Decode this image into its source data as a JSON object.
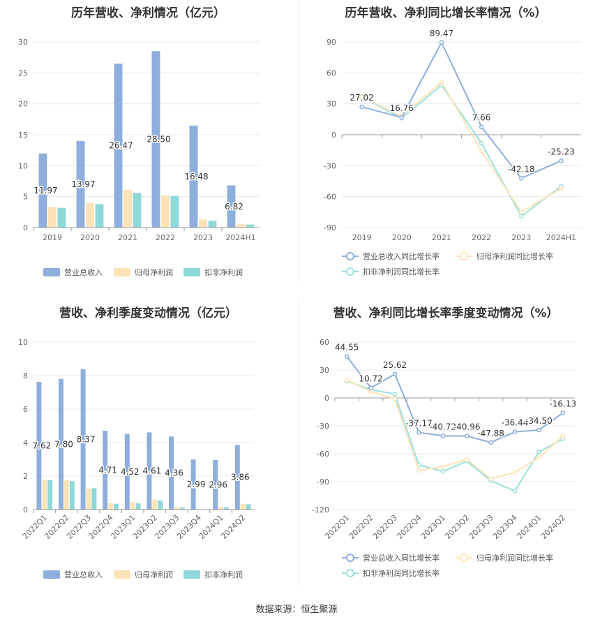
{
  "source_label": "数据来源：恒生聚源",
  "colors": {
    "revenue": "#8eaedb",
    "parent_profit": "#fde3b7",
    "deducted_profit": "#8fd8d8",
    "revenue_line": "#8eaedb",
    "parent_line": "#fde3b7",
    "deducted_line": "#9ae0dc"
  },
  "chart_data": [
    {
      "id": "annual-bars",
      "type": "bar",
      "title": "历年营收、净利情况（亿元）",
      "categories": [
        "2019",
        "2020",
        "2021",
        "2022",
        "2023",
        "2024H1"
      ],
      "ylim": [
        0,
        30
      ],
      "yticks": [
        0,
        5,
        10,
        15,
        20,
        25,
        30
      ],
      "legend_position": "bottom",
      "series": [
        {
          "name": "营业总收入",
          "values": [
            11.97,
            13.97,
            26.47,
            28.5,
            16.48,
            6.82
          ],
          "labels": [
            "11.97",
            "13.97",
            "26.47",
            "28.50",
            "16.48",
            "6.82"
          ]
        },
        {
          "name": "归母净利润",
          "values": [
            3.3,
            4.0,
            6.1,
            5.2,
            1.3,
            0.55
          ],
          "labels": []
        },
        {
          "name": "扣非净利润",
          "values": [
            3.2,
            3.8,
            5.6,
            5.1,
            1.1,
            0.5
          ],
          "labels": []
        }
      ]
    },
    {
      "id": "annual-lines",
      "type": "line",
      "title": "历年营收、净利同比增长率情况（%）",
      "categories": [
        "2019",
        "2020",
        "2021",
        "2022",
        "2023",
        "2024H1"
      ],
      "ylim": [
        -90,
        90
      ],
      "yticks": [
        -90,
        -60,
        -30,
        0,
        30,
        60,
        90
      ],
      "legend_position": "bottom",
      "series": [
        {
          "name": "营业总收入同比增长率",
          "values": [
            27.02,
            16.76,
            89.47,
            7.66,
            -42.18,
            -25.23
          ],
          "labels": [
            "27.02",
            "16.76",
            "89.47",
            "7.66",
            "-42.18",
            "-25.23"
          ]
        },
        {
          "name": "归母净利润同比增长率",
          "values": [
            37,
            18,
            51,
            -16,
            -75,
            -52
          ],
          "labels": []
        },
        {
          "name": "扣非净利润同比增长率",
          "values": [
            37,
            16,
            48,
            -8,
            -79,
            -50
          ],
          "labels": []
        }
      ]
    },
    {
      "id": "quarterly-bars",
      "type": "bar",
      "title": "营收、净利季度变动情况（亿元）",
      "categories": [
        "2022Q1",
        "2022Q2",
        "2022Q3",
        "2022Q4",
        "2023Q1",
        "2023Q2",
        "2023Q3",
        "2023Q4",
        "2024Q1",
        "2024Q2"
      ],
      "ylim": [
        0,
        10
      ],
      "yticks": [
        0,
        2,
        4,
        6,
        8,
        10
      ],
      "legend_position": "bottom",
      "series": [
        {
          "name": "营业总收入",
          "values": [
            7.62,
            7.8,
            8.37,
            4.71,
            4.52,
            4.61,
            4.36,
            2.99,
            2.96,
            3.86
          ],
          "labels": [
            "7.62",
            "7.80",
            "8.37",
            "4.71",
            "4.52",
            "4.61",
            "4.36",
            "2.99",
            "2.96",
            "3.86"
          ]
        },
        {
          "name": "归母净利润",
          "values": [
            1.8,
            1.75,
            1.25,
            0.38,
            0.45,
            0.6,
            0.15,
            0.02,
            0.15,
            0.35
          ],
          "labels": []
        },
        {
          "name": "扣非净利润",
          "values": [
            1.75,
            1.7,
            1.28,
            0.35,
            0.38,
            0.55,
            0.12,
            0.01,
            0.14,
            0.32
          ],
          "labels": []
        }
      ]
    },
    {
      "id": "quarterly-lines",
      "type": "line",
      "title": "营收、净利同比增长率季度变动情况（%）",
      "categories": [
        "2022Q1",
        "2022Q2",
        "2022Q3",
        "2022Q4",
        "2023Q1",
        "2023Q2",
        "2023Q3",
        "2023Q4",
        "2024Q1",
        "2024Q2"
      ],
      "ylim": [
        -120,
        60
      ],
      "yticks": [
        -120,
        -90,
        -60,
        -30,
        0,
        30,
        60
      ],
      "legend_position": "bottom",
      "series": [
        {
          "name": "营业总收入同比增长率",
          "values": [
            44.55,
            10.72,
            25.62,
            -37.17,
            -40.72,
            -40.96,
            -47.88,
            -36.44,
            -34.5,
            -16.13
          ],
          "labels": [
            "44.55",
            "10.72",
            "25.62",
            "-37.17",
            "-40.72",
            "-40.96",
            "-47.88",
            "-36.44",
            "-34.50",
            "-16.13"
          ]
        },
        {
          "name": "归母净利润同比增长率",
          "values": [
            19,
            7,
            -1,
            -78,
            -74,
            -66,
            -87,
            -80,
            -64,
            -41
          ],
          "labels": []
        },
        {
          "name": "扣非净利润同比增长率",
          "values": [
            18,
            9,
            4,
            -72,
            -79,
            -68,
            -89,
            -100,
            -58,
            -44
          ],
          "labels": []
        }
      ]
    }
  ]
}
